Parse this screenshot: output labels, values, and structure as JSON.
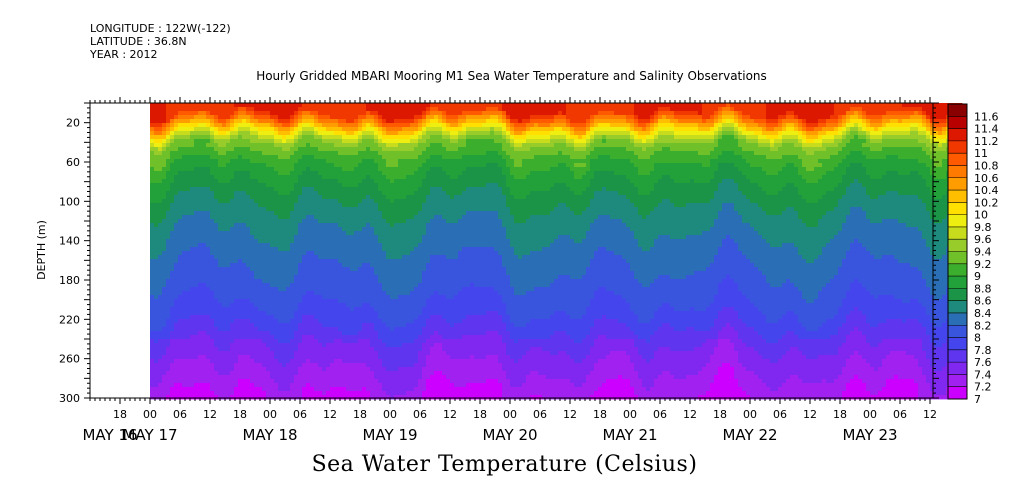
{
  "meta": {
    "longitude": "LONGITUDE : 122W(-122)",
    "latitude": "LATITUDE : 36.8N",
    "year": "YEAR : 2012"
  },
  "chart_data": {
    "type": "heatmap",
    "title": "Hourly Gridded MBARI Mooring M1 Sea Water Temperature and Salinity Observations",
    "xlabel": "Sea Water Temperature (Celsius)",
    "ylabel": "DEPTH (m)",
    "ylim": [
      300,
      0
    ],
    "y_ticks": [
      20,
      60,
      100,
      140,
      180,
      220,
      260,
      300
    ],
    "x_range": [
      "2012-05-16T12:00",
      "2012-05-23T18:00"
    ],
    "data_start": "2012-05-17T00:00",
    "hour_ticks": [
      "18",
      "00",
      "06",
      "12",
      "18",
      "00",
      "06",
      "12",
      "18",
      "00",
      "06",
      "12",
      "18",
      "00",
      "06",
      "12",
      "18",
      "00",
      "06",
      "12",
      "18",
      "00",
      "06",
      "12",
      "18",
      "00",
      "06",
      "12"
    ],
    "date_ticks": [
      "MAY 16",
      "MAY 17",
      "MAY 18",
      "MAY 19",
      "MAY 20",
      "MAY 21",
      "MAY 22",
      "MAY 23"
    ],
    "colorbar": {
      "levels": [
        "7",
        "7.2",
        "7.4",
        "7.6",
        "7.8",
        "8",
        "8.2",
        "8.4",
        "8.6",
        "8.8",
        "9",
        "9.2",
        "9.4",
        "9.6",
        "9.8",
        "10",
        "10.2",
        "10.4",
        "10.6",
        "10.8",
        "11",
        "11.2",
        "11.4",
        "11.6"
      ],
      "colors": [
        "#cc00ff",
        "#a021f0",
        "#8028f0",
        "#6035f0",
        "#4545ee",
        "#3a55dd",
        "#2a6fb5",
        "#1e8a7e",
        "#1c9448",
        "#22a03a",
        "#3cae2e",
        "#70c02a",
        "#98cc2a",
        "#c8dc1e",
        "#eeee10",
        "#ffe000",
        "#ffbf00",
        "#ff9c00",
        "#ff7a00",
        "#ff5a00",
        "#f03800",
        "#dc1800",
        "#b80000",
        "#8a0000"
      ]
    },
    "profile_depths": [
      10,
      20,
      30,
      40,
      60,
      80,
      100,
      130,
      170,
      210,
      250,
      290,
      300
    ],
    "profile_temps": [
      11.2,
      10.6,
      9.9,
      9.4,
      9.0,
      8.8,
      8.6,
      8.4,
      8.2,
      8.0,
      7.6,
      7.3,
      7.2
    ]
  }
}
